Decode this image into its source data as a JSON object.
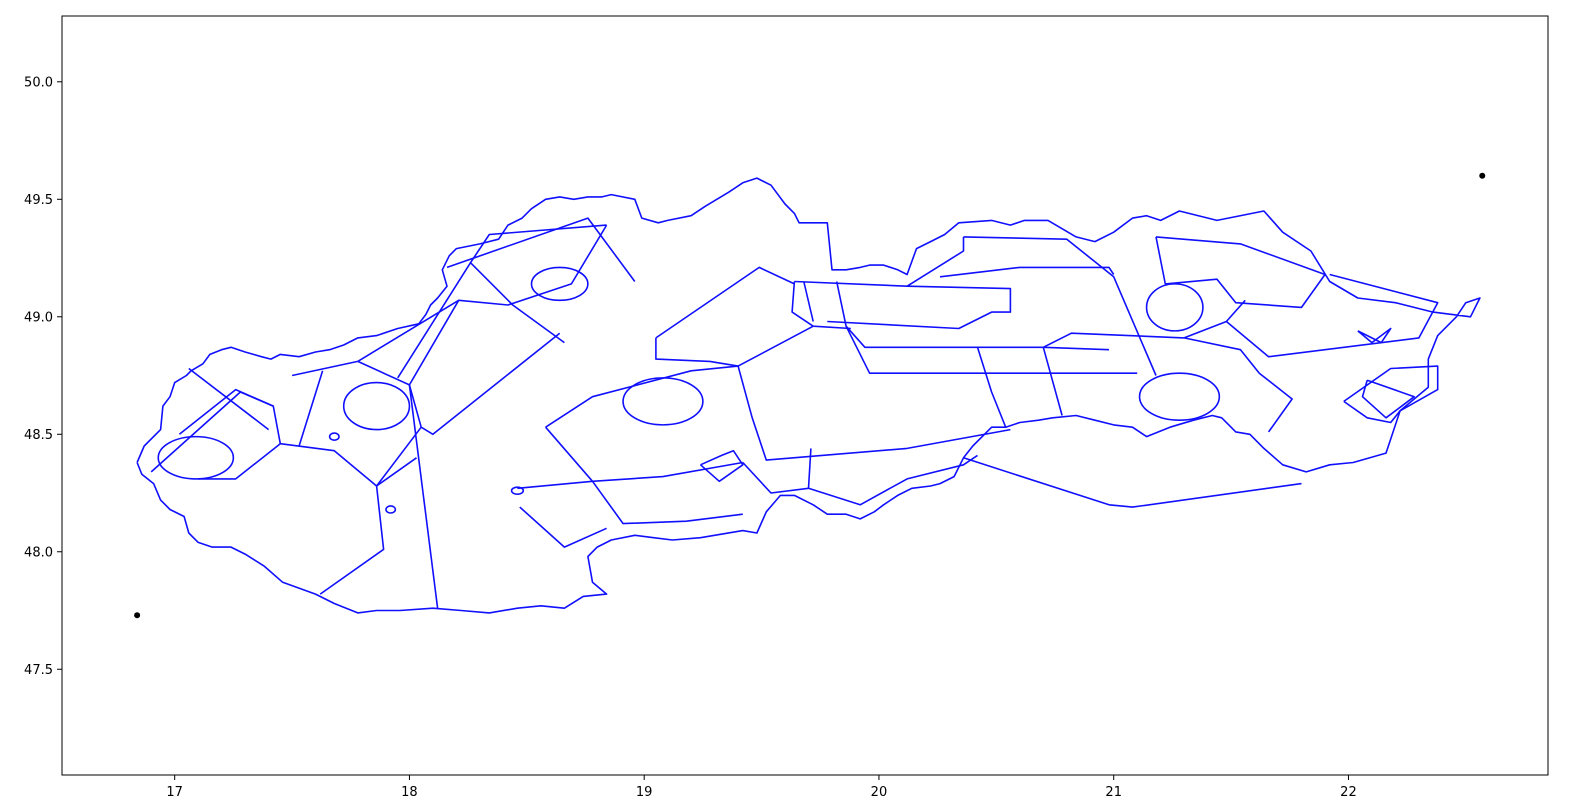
{
  "chart_data": {
    "type": "map",
    "title": "",
    "xlabel": "",
    "ylabel": "",
    "xlim": [
      16.52,
      22.85
    ],
    "ylim": [
      47.05,
      50.28
    ],
    "x_ticks": [
      17,
      18,
      19,
      20,
      21,
      22
    ],
    "y_ticks": [
      47.5,
      48.0,
      48.5,
      49.0,
      49.5,
      50.0
    ],
    "x_tick_labels": [
      "17",
      "18",
      "19",
      "20",
      "21",
      "22"
    ],
    "y_tick_labels": [
      "47.5",
      "48.0",
      "48.5",
      "49.0",
      "49.5",
      "50.0"
    ],
    "line_color": "#1010ff",
    "point_color": "#000000",
    "points": [
      {
        "x": 16.84,
        "y": 47.73
      },
      {
        "x": 22.57,
        "y": 49.6
      }
    ],
    "outline": [
      [
        16.84,
        48.38
      ],
      [
        16.87,
        48.45
      ],
      [
        16.94,
        48.52
      ],
      [
        16.95,
        48.62
      ],
      [
        16.98,
        48.66
      ],
      [
        17.0,
        48.72
      ],
      [
        17.05,
        48.75
      ],
      [
        17.07,
        48.77
      ],
      [
        17.12,
        48.8
      ],
      [
        17.15,
        48.84
      ],
      [
        17.2,
        48.86
      ],
      [
        17.24,
        48.87
      ],
      [
        17.3,
        48.85
      ],
      [
        17.37,
        48.83
      ],
      [
        17.41,
        48.82
      ],
      [
        17.45,
        48.84
      ],
      [
        17.53,
        48.83
      ],
      [
        17.6,
        48.85
      ],
      [
        17.66,
        48.86
      ],
      [
        17.72,
        48.88
      ],
      [
        17.78,
        48.91
      ],
      [
        17.86,
        48.92
      ],
      [
        17.95,
        48.95
      ],
      [
        18.04,
        48.97
      ],
      [
        18.07,
        49.01
      ],
      [
        18.09,
        49.05
      ],
      [
        18.12,
        49.08
      ],
      [
        18.16,
        49.13
      ],
      [
        18.14,
        49.2
      ],
      [
        18.17,
        49.26
      ],
      [
        18.2,
        49.29
      ],
      [
        18.3,
        49.31
      ],
      [
        18.38,
        49.33
      ],
      [
        18.42,
        49.39
      ],
      [
        18.48,
        49.42
      ],
      [
        18.52,
        49.46
      ],
      [
        18.58,
        49.5
      ],
      [
        18.64,
        49.51
      ],
      [
        18.7,
        49.5
      ],
      [
        18.76,
        49.51
      ],
      [
        18.82,
        49.51
      ],
      [
        18.86,
        49.52
      ],
      [
        18.96,
        49.5
      ],
      [
        18.99,
        49.42
      ],
      [
        19.06,
        49.4
      ],
      [
        19.1,
        49.41
      ],
      [
        19.2,
        49.43
      ],
      [
        19.26,
        49.47
      ],
      [
        19.36,
        49.53
      ],
      [
        19.42,
        49.57
      ],
      [
        19.48,
        49.59
      ],
      [
        19.54,
        49.56
      ],
      [
        19.6,
        49.48
      ],
      [
        19.64,
        49.44
      ],
      [
        19.66,
        49.4
      ],
      [
        19.72,
        49.4
      ],
      [
        19.78,
        49.4
      ],
      [
        19.8,
        49.2
      ],
      [
        19.86,
        49.2
      ],
      [
        19.92,
        49.21
      ],
      [
        19.96,
        49.22
      ],
      [
        20.02,
        49.22
      ],
      [
        20.08,
        49.2
      ],
      [
        20.12,
        49.18
      ],
      [
        20.16,
        49.29
      ],
      [
        20.22,
        49.32
      ],
      [
        20.28,
        49.35
      ],
      [
        20.34,
        49.4
      ],
      [
        20.48,
        49.41
      ],
      [
        20.56,
        49.39
      ],
      [
        20.62,
        49.41
      ],
      [
        20.72,
        49.41
      ],
      [
        20.84,
        49.34
      ],
      [
        20.92,
        49.32
      ],
      [
        21.0,
        49.36
      ],
      [
        21.08,
        49.42
      ],
      [
        21.14,
        49.43
      ],
      [
        21.2,
        49.41
      ],
      [
        21.28,
        49.45
      ],
      [
        21.44,
        49.41
      ],
      [
        21.64,
        49.45
      ],
      [
        21.72,
        49.36
      ],
      [
        21.84,
        49.28
      ],
      [
        21.92,
        49.15
      ],
      [
        22.04,
        49.08
      ],
      [
        22.2,
        49.06
      ],
      [
        22.36,
        49.02
      ],
      [
        22.52,
        49.0
      ],
      [
        22.56,
        49.08
      ],
      [
        22.5,
        49.06
      ],
      [
        22.46,
        49.0
      ],
      [
        22.38,
        48.92
      ],
      [
        22.34,
        48.82
      ],
      [
        22.34,
        48.7
      ],
      [
        22.22,
        48.6
      ],
      [
        22.16,
        48.42
      ],
      [
        22.02,
        48.38
      ],
      [
        21.92,
        48.37
      ],
      [
        21.82,
        48.34
      ],
      [
        21.72,
        48.37
      ],
      [
        21.64,
        48.44
      ],
      [
        21.58,
        48.5
      ],
      [
        21.52,
        48.51
      ],
      [
        21.46,
        48.57
      ],
      [
        21.42,
        48.58
      ],
      [
        21.34,
        48.56
      ],
      [
        21.24,
        48.53
      ],
      [
        21.14,
        48.49
      ],
      [
        21.08,
        48.53
      ],
      [
        21.0,
        48.54
      ],
      [
        20.92,
        48.56
      ],
      [
        20.84,
        48.58
      ],
      [
        20.74,
        48.57
      ],
      [
        20.68,
        48.56
      ],
      [
        20.6,
        48.55
      ],
      [
        20.54,
        48.53
      ],
      [
        20.48,
        48.53
      ],
      [
        20.4,
        48.45
      ],
      [
        20.36,
        48.4
      ],
      [
        20.32,
        48.32
      ],
      [
        20.26,
        48.29
      ],
      [
        20.22,
        48.28
      ],
      [
        20.14,
        48.27
      ],
      [
        20.08,
        48.24
      ],
      [
        20.02,
        48.2
      ],
      [
        19.98,
        48.17
      ],
      [
        19.92,
        48.14
      ],
      [
        19.86,
        48.16
      ],
      [
        19.78,
        48.16
      ],
      [
        19.72,
        48.2
      ],
      [
        19.64,
        48.24
      ],
      [
        19.58,
        48.24
      ],
      [
        19.52,
        48.17
      ],
      [
        19.48,
        48.08
      ],
      [
        19.42,
        48.09
      ],
      [
        19.24,
        48.06
      ],
      [
        19.12,
        48.05
      ],
      [
        19.04,
        48.06
      ],
      [
        18.96,
        48.07
      ],
      [
        18.86,
        48.05
      ],
      [
        18.8,
        48.02
      ],
      [
        18.76,
        47.98
      ],
      [
        18.78,
        47.87
      ],
      [
        18.84,
        47.82
      ],
      [
        18.74,
        47.81
      ],
      [
        18.66,
        47.76
      ],
      [
        18.56,
        47.77
      ],
      [
        18.46,
        47.76
      ],
      [
        18.34,
        47.74
      ],
      [
        18.22,
        47.75
      ],
      [
        18.1,
        47.76
      ],
      [
        17.96,
        47.75
      ],
      [
        17.86,
        47.75
      ],
      [
        17.78,
        47.74
      ],
      [
        17.68,
        47.78
      ],
      [
        17.6,
        47.82
      ],
      [
        17.46,
        47.87
      ],
      [
        17.38,
        47.94
      ],
      [
        17.3,
        47.99
      ],
      [
        17.24,
        48.02
      ],
      [
        17.16,
        48.02
      ],
      [
        17.1,
        48.04
      ],
      [
        17.06,
        48.08
      ],
      [
        17.04,
        48.15
      ],
      [
        16.98,
        48.18
      ],
      [
        16.94,
        48.22
      ],
      [
        16.91,
        48.29
      ],
      [
        16.86,
        48.33
      ],
      [
        16.84,
        48.38
      ]
    ],
    "internal_boundaries": [
      [
        [
          17.06,
          48.78
        ],
        [
          17.4,
          48.52
        ]
      ],
      [
        [
          16.9,
          48.34
        ],
        [
          17.28,
          48.68
        ],
        [
          17.42,
          48.62
        ],
        [
          17.45,
          48.46
        ],
        [
          17.68,
          48.43
        ],
        [
          17.86,
          48.28
        ],
        [
          18.03,
          48.4
        ]
      ],
      [
        [
          17.45,
          48.46
        ],
        [
          17.26,
          48.31
        ],
        [
          17.1,
          48.31
        ]
      ],
      [
        [
          17.42,
          48.62
        ],
        [
          17.26,
          48.69
        ],
        [
          17.02,
          48.5
        ]
      ],
      [
        [
          17.5,
          48.75
        ],
        [
          17.78,
          48.81
        ],
        [
          18.0,
          48.71
        ]
      ],
      [
        [
          17.63,
          48.77
        ],
        [
          17.53,
          48.45
        ]
      ],
      [
        [
          17.78,
          48.81
        ],
        [
          18.21,
          49.07
        ],
        [
          18.42,
          49.05
        ],
        [
          18.69,
          49.14
        ],
        [
          18.84,
          49.39
        ]
      ],
      [
        [
          17.95,
          48.74
        ],
        [
          18.26,
          49.23
        ],
        [
          18.34,
          49.35
        ],
        [
          18.84,
          49.39
        ]
      ],
      [
        [
          18.26,
          49.23
        ],
        [
          18.44,
          49.05
        ],
        [
          18.66,
          48.89
        ]
      ],
      [
        [
          18.0,
          48.71
        ],
        [
          18.05,
          48.53
        ],
        [
          18.1,
          48.5
        ],
        [
          18.64,
          48.93
        ]
      ],
      [
        [
          18.0,
          48.71
        ],
        [
          18.21,
          49.07
        ]
      ],
      [
        [
          18.0,
          48.71
        ],
        [
          18.12,
          47.76
        ]
      ],
      [
        [
          18.05,
          48.53
        ],
        [
          17.86,
          48.28
        ],
        [
          17.89,
          48.01
        ],
        [
          17.62,
          47.82
        ]
      ],
      [
        [
          18.16,
          49.21
        ],
        [
          18.76,
          49.42
        ],
        [
          18.96,
          49.15
        ]
      ],
      [
        [
          18.46,
          48.27
        ],
        [
          18.78,
          48.3
        ],
        [
          19.08,
          48.32
        ],
        [
          19.42,
          48.38
        ]
      ],
      [
        [
          18.47,
          48.19
        ],
        [
          18.66,
          48.02
        ],
        [
          18.84,
          48.1
        ]
      ],
      [
        [
          18.78,
          48.3
        ],
        [
          18.91,
          48.12
        ],
        [
          19.18,
          48.13
        ],
        [
          19.42,
          48.16
        ]
      ],
      [
        [
          18.58,
          48.53
        ],
        [
          18.78,
          48.66
        ],
        [
          19.2,
          48.77
        ],
        [
          19.4,
          48.79
        ],
        [
          19.72,
          48.96
        ]
      ],
      [
        [
          18.58,
          48.53
        ],
        [
          18.78,
          48.3
        ]
      ],
      [
        [
          19.05,
          48.91
        ],
        [
          19.49,
          49.21
        ],
        [
          19.64,
          49.14
        ]
      ],
      [
        [
          19.05,
          48.91
        ],
        [
          19.05,
          48.82
        ],
        [
          19.28,
          48.81
        ],
        [
          19.4,
          48.79
        ]
      ],
      [
        [
          19.4,
          48.79
        ],
        [
          19.46,
          48.57
        ],
        [
          19.52,
          48.39
        ],
        [
          20.12,
          48.44
        ],
        [
          20.56,
          48.52
        ]
      ],
      [
        [
          19.42,
          48.38
        ],
        [
          19.54,
          48.25
        ],
        [
          19.7,
          48.27
        ],
        [
          19.92,
          48.2
        ],
        [
          20.12,
          48.31
        ],
        [
          20.36,
          48.37
        ],
        [
          20.42,
          48.41
        ]
      ],
      [
        [
          19.7,
          48.27
        ],
        [
          19.71,
          48.44
        ]
      ],
      [
        [
          19.24,
          48.37
        ],
        [
          19.33,
          48.41
        ],
        [
          19.38,
          48.43
        ],
        [
          19.42,
          48.37
        ],
        [
          19.32,
          48.3
        ],
        [
          19.24,
          48.37
        ]
      ],
      [
        [
          19.64,
          49.15
        ],
        [
          20.12,
          49.13
        ],
        [
          20.56,
          49.12
        ],
        [
          20.56,
          49.02
        ],
        [
          20.48,
          49.02
        ],
        [
          20.34,
          48.95
        ],
        [
          19.78,
          48.98
        ]
      ],
      [
        [
          19.64,
          49.15
        ],
        [
          19.63,
          49.02
        ],
        [
          19.72,
          48.96
        ],
        [
          19.88,
          48.95
        ]
      ],
      [
        [
          19.68,
          49.15
        ],
        [
          19.72,
          48.98
        ]
      ],
      [
        [
          19.82,
          49.15
        ],
        [
          19.86,
          48.96
        ],
        [
          19.94,
          48.87
        ],
        [
          20.52,
          48.87
        ],
        [
          20.7,
          48.87
        ],
        [
          20.98,
          48.86
        ]
      ],
      [
        [
          19.86,
          48.96
        ],
        [
          19.96,
          48.76
        ],
        [
          21.1,
          48.76
        ]
      ],
      [
        [
          20.26,
          49.17
        ],
        [
          20.6,
          49.21
        ],
        [
          20.98,
          49.21
        ],
        [
          21.0,
          49.18
        ]
      ],
      [
        [
          20.12,
          49.13
        ],
        [
          20.36,
          49.28
        ],
        [
          20.36,
          49.34
        ]
      ],
      [
        [
          20.36,
          49.34
        ],
        [
          20.8,
          49.33
        ],
        [
          21.0,
          49.17
        ],
        [
          21.18,
          48.75
        ]
      ],
      [
        [
          20.7,
          48.87
        ],
        [
          20.78,
          48.58
        ]
      ],
      [
        [
          20.42,
          48.87
        ],
        [
          20.48,
          48.68
        ],
        [
          20.54,
          48.53
        ]
      ],
      [
        [
          20.36,
          48.4
        ],
        [
          20.98,
          48.2
        ],
        [
          21.08,
          48.19
        ],
        [
          21.8,
          48.29
        ]
      ],
      [
        [
          20.7,
          48.87
        ],
        [
          20.82,
          48.93
        ],
        [
          21.3,
          48.91
        ]
      ],
      [
        [
          21.18,
          49.34
        ],
        [
          21.22,
          49.14
        ],
        [
          21.44,
          49.16
        ],
        [
          21.52,
          49.06
        ],
        [
          21.8,
          49.04
        ],
        [
          21.9,
          49.18
        ],
        [
          21.54,
          49.31
        ],
        [
          21.18,
          49.34
        ]
      ],
      [
        [
          21.3,
          48.91
        ],
        [
          21.48,
          48.98
        ],
        [
          21.56,
          49.07
        ]
      ],
      [
        [
          21.48,
          48.98
        ],
        [
          21.66,
          48.83
        ],
        [
          22.3,
          48.91
        ],
        [
          22.38,
          49.06
        ],
        [
          21.92,
          49.18
        ]
      ],
      [
        [
          21.3,
          48.91
        ],
        [
          21.54,
          48.86
        ],
        [
          21.62,
          48.76
        ],
        [
          21.76,
          48.65
        ],
        [
          21.66,
          48.51
        ]
      ],
      [
        [
          22.04,
          48.94
        ],
        [
          22.1,
          48.89
        ],
        [
          22.18,
          48.95
        ],
        [
          22.14,
          48.89
        ],
        [
          22.04,
          48.94
        ]
      ],
      [
        [
          21.98,
          48.64
        ],
        [
          22.18,
          48.78
        ],
        [
          22.38,
          48.79
        ],
        [
          22.38,
          48.69
        ],
        [
          22.22,
          48.6
        ],
        [
          22.18,
          48.55
        ],
        [
          22.08,
          48.57
        ],
        [
          21.98,
          48.64
        ]
      ],
      [
        [
          22.08,
          48.73
        ],
        [
          22.28,
          48.66
        ],
        [
          22.16,
          48.57
        ],
        [
          22.06,
          48.66
        ],
        [
          22.08,
          48.73
        ]
      ]
    ],
    "circles": [
      {
        "cx": 17.09,
        "cy": 48.4,
        "rx": 0.16,
        "ry": 0.09
      },
      {
        "cx": 19.08,
        "cy": 48.64,
        "rx": 0.17,
        "ry": 0.1
      },
      {
        "cx": 21.28,
        "cy": 48.66,
        "rx": 0.17,
        "ry": 0.1
      },
      {
        "cx": 21.26,
        "cy": 49.04,
        "rx": 0.12,
        "ry": 0.1
      },
      {
        "cx": 18.64,
        "cy": 49.14,
        "rx": 0.12,
        "ry": 0.07
      },
      {
        "cx": 17.86,
        "cy": 48.62,
        "rx": 0.14,
        "ry": 0.1
      },
      {
        "cx": 17.68,
        "cy": 48.49,
        "rx": 0.02,
        "ry": 0.015
      },
      {
        "cx": 17.92,
        "cy": 48.18,
        "rx": 0.02,
        "ry": 0.015
      },
      {
        "cx": 18.46,
        "cy": 48.26,
        "rx": 0.025,
        "ry": 0.015
      }
    ]
  }
}
